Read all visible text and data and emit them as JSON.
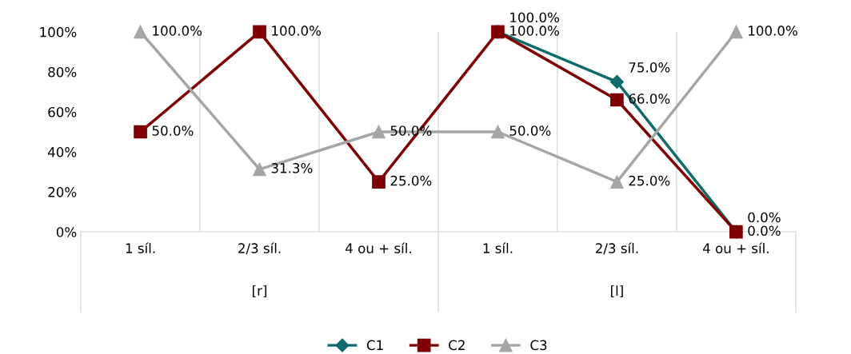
{
  "chart_data": {
    "type": "line",
    "categories": [
      "1 síl.",
      "2/3 síl.",
      "4 ou + síl.",
      "1 síl.",
      "2/3 síl.",
      "4 ou + síl."
    ],
    "annotations": [
      "[r]",
      "[l]"
    ],
    "series": [
      {
        "name": "C1",
        "color": "#0f6b6b",
        "marker": "diamond",
        "values": [
          null,
          null,
          null,
          100,
          75,
          0
        ],
        "value_labels": [
          null,
          null,
          null,
          "100.0%",
          "75.0%",
          "0.0%"
        ]
      },
      {
        "name": "C2",
        "color": "#7f0000",
        "marker": "square",
        "values": [
          50,
          100,
          25,
          100,
          66,
          0
        ],
        "value_labels": [
          "50.0%",
          "100.0%",
          "25.0%",
          "100.0%",
          "66.0%",
          "0.0%"
        ]
      },
      {
        "name": "C3",
        "color": "#a5a5a5",
        "marker": "triangle",
        "values": [
          100,
          31.3,
          50,
          50,
          25,
          100
        ],
        "value_labels": [
          "100.0%",
          "31.3%",
          "50.0%",
          "50.0%",
          "25.0%",
          "100.0%"
        ]
      }
    ],
    "ylim": [
      0,
      100
    ],
    "yticks": [
      {
        "value": 0,
        "label": "0%"
      },
      {
        "value": 20,
        "label": "20%"
      },
      {
        "value": 40,
        "label": "40%"
      },
      {
        "value": 60,
        "label": "60%"
      },
      {
        "value": 80,
        "label": "80%"
      },
      {
        "value": 100,
        "label": "100%"
      }
    ],
    "grid": "x",
    "legend": "bottom",
    "line_style": "solid"
  }
}
